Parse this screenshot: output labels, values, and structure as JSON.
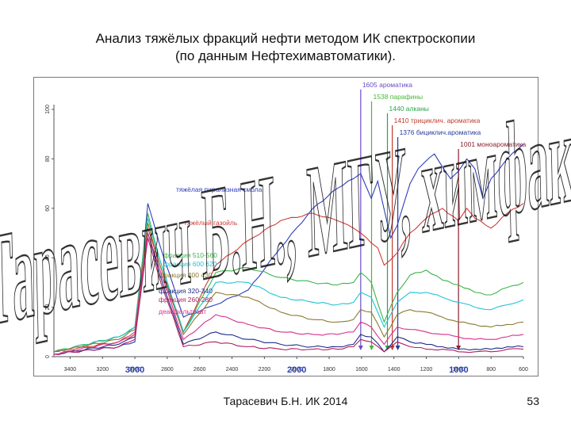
{
  "title_line1": "Анализ тяжёлых фракций нефти методом ИК спектроскопии",
  "title_line2": "(по данным Нефтехимавтоматики).",
  "footer_author": "Тарасевич Б.Н.  ИК 2014",
  "page_number": "53",
  "watermark": "Тарасевич Б.Н., МГУ, химфак.",
  "chart_data": {
    "type": "line",
    "xlim": [
      3500,
      600
    ],
    "ylim": [
      0,
      100
    ],
    "x_ticks": [
      3400,
      3200,
      3000,
      2800,
      2600,
      2400,
      2200,
      2000,
      1800,
      1600,
      1400,
      1200,
      1000,
      800,
      600
    ],
    "x_major_labels": [
      "3000",
      "2000",
      "1000"
    ],
    "y_ticks": [
      0,
      20,
      40,
      60,
      80,
      100
    ],
    "peak_annotations": [
      {
        "x": 1605,
        "label": "1605 ароматика",
        "color": "#6a4cc8"
      },
      {
        "x": 1538,
        "label": "1538 парафины",
        "color": "#4bb53a"
      },
      {
        "x": 1440,
        "label": "1440 алканы",
        "color": "#2aa34a"
      },
      {
        "x": 1410,
        "label": "1410 трициклич. ароматика",
        "color": "#c0392b"
      },
      {
        "x": 1376,
        "label": "1376 бициклич.ароматика",
        "color": "#2a3a9a"
      },
      {
        "x": 1001,
        "label": "1001 моноароматика",
        "color": "#8e1e2e"
      }
    ],
    "series": [
      {
        "name": "тяжёлая пиролизная смола",
        "color": "#2e3dbb",
        "x": [
          3500,
          3100,
          3000,
          2920,
          2850,
          2700,
          2500,
          2300,
          2100,
          1900,
          1750,
          1650,
          1605,
          1540,
          1500,
          1420,
          1380,
          1300,
          1250,
          1150,
          1050,
          1001,
          950,
          900,
          850,
          800,
          700,
          600
        ],
        "y": [
          1,
          4,
          6,
          62,
          46,
          16,
          21,
          27,
          44,
          60,
          68,
          72,
          74,
          64,
          71,
          48,
          53,
          70,
          76,
          82,
          72,
          75,
          80,
          76,
          64,
          72,
          80,
          86
        ]
      },
      {
        "name": "тяжёлый газойль",
        "color": "#d43a3a",
        "x": [
          3500,
          3100,
          3000,
          2920,
          2850,
          2700,
          2500,
          2300,
          2100,
          1900,
          1750,
          1650,
          1605,
          1540,
          1500,
          1460,
          1380,
          1300,
          1200,
          1100,
          1001,
          950,
          900,
          800,
          700,
          600
        ],
        "y": [
          2,
          6,
          9,
          52,
          38,
          10,
          37,
          47,
          55,
          58,
          55,
          52,
          50,
          46,
          44,
          37,
          42,
          50,
          56,
          60,
          55,
          60,
          56,
          52,
          58,
          62
        ]
      },
      {
        "name": "фракция 510-560",
        "color": "#39b54a",
        "x": [
          3500,
          3100,
          3000,
          2920,
          2850,
          2700,
          2500,
          2300,
          2100,
          1900,
          1750,
          1650,
          1605,
          1540,
          1460,
          1380,
          1300,
          1200,
          1100,
          1001,
          900,
          800,
          700,
          600
        ],
        "y": [
          2,
          8,
          12,
          58,
          40,
          10,
          34,
          36,
          32,
          30,
          29,
          30,
          34,
          30,
          14,
          26,
          33,
          35,
          31,
          29,
          26,
          25,
          28,
          30
        ]
      },
      {
        "name": "фракция 600 620",
        "color": "#1fc4d6",
        "x": [
          3500,
          3100,
          3000,
          2920,
          2850,
          2700,
          2500,
          2300,
          2100,
          1900,
          1750,
          1650,
          1605,
          1540,
          1460,
          1380,
          1300,
          1200,
          1100,
          1001,
          900,
          800,
          700,
          600
        ],
        "y": [
          2,
          8,
          12,
          56,
          40,
          10,
          30,
          30,
          24,
          22,
          21,
          22,
          26,
          24,
          12,
          22,
          26,
          26,
          24,
          22,
          20,
          19,
          21,
          23
        ]
      },
      {
        "name": "фракция 400 430",
        "color": "#8a7a2e",
        "x": [
          3500,
          3100,
          3000,
          2920,
          2850,
          2700,
          2500,
          2300,
          2100,
          1900,
          1750,
          1650,
          1605,
          1540,
          1460,
          1380,
          1300,
          1200,
          1100,
          1001,
          900,
          800,
          700,
          600
        ],
        "y": [
          2,
          7,
          11,
          54,
          38,
          9,
          26,
          24,
          18,
          15,
          14,
          15,
          19,
          18,
          8,
          17,
          19,
          18,
          16,
          14,
          13,
          12,
          13,
          14
        ]
      },
      {
        "name": "фракция 320-340",
        "color": "#1f2a88",
        "x": [
          3500,
          3100,
          3000,
          2920,
          2850,
          2700,
          2500,
          2300,
          2100,
          1900,
          1750,
          1650,
          1605,
          1540,
          1460,
          1380,
          1300,
          1200,
          1100,
          1001,
          900,
          800,
          700,
          600
        ],
        "y": [
          1,
          5,
          8,
          50,
          34,
          5,
          10,
          7,
          5,
          4,
          4,
          5,
          9,
          8,
          2,
          8,
          6,
          5,
          4,
          3,
          3,
          3,
          4,
          4
        ]
      },
      {
        "name": "фракция 260-280",
        "color": "#b0205e",
        "x": [
          3500,
          3100,
          3000,
          2920,
          2850,
          2700,
          2500,
          2300,
          2100,
          1900,
          1750,
          1650,
          1605,
          1540,
          1460,
          1380,
          1300,
          1200,
          1100,
          1001,
          900,
          800,
          700,
          600
        ],
        "y": [
          1,
          4,
          7,
          48,
          32,
          4,
          6,
          4,
          3,
          3,
          3,
          4,
          7,
          6,
          2,
          6,
          4,
          3,
          3,
          2,
          2,
          2,
          3,
          3
        ]
      },
      {
        "name": "деасфальтизат",
        "color": "#d92e8a",
        "x": [
          3500,
          3100,
          3000,
          2920,
          2850,
          2700,
          2500,
          2300,
          2100,
          1900,
          1750,
          1650,
          1605,
          1540,
          1460,
          1380,
          1300,
          1200,
          1100,
          1001,
          900,
          800,
          700,
          600
        ],
        "y": [
          1,
          6,
          10,
          50,
          36,
          7,
          17,
          13,
          10,
          9,
          9,
          10,
          14,
          12,
          5,
          12,
          11,
          10,
          9,
          8,
          7,
          7,
          8,
          9
        ]
      }
    ]
  }
}
